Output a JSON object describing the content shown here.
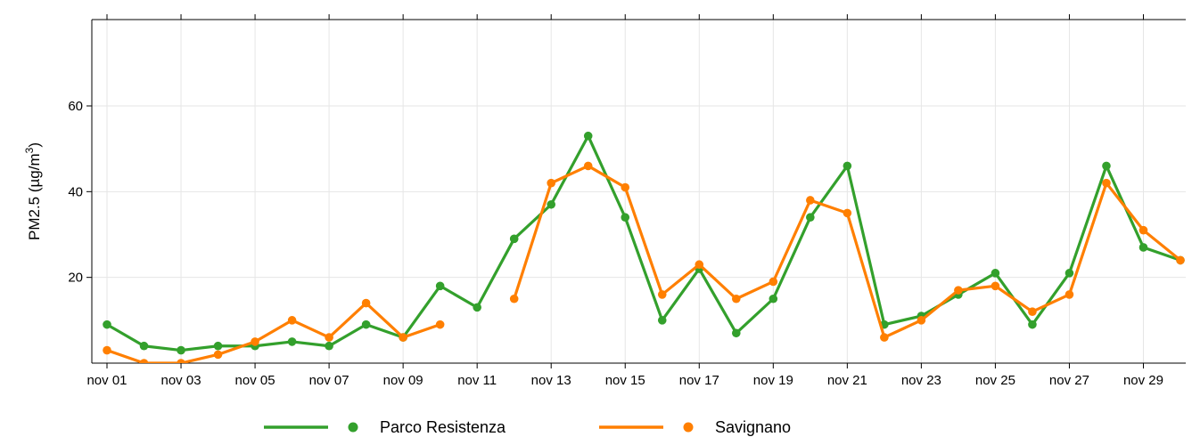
{
  "chart_data": {
    "type": "line",
    "ylabel": "PM2.5 (µg/m³)",
    "ylabel_main": "PM2.5 (µg/m",
    "ylabel_sup": "3",
    "ylabel_end": ")",
    "xlim": [
      1,
      30
    ],
    "ylim": [
      0,
      75
    ],
    "grid": true,
    "legend_position": "bottom",
    "x": [
      1,
      2,
      3,
      4,
      5,
      6,
      7,
      8,
      9,
      10,
      11,
      12,
      13,
      14,
      15,
      16,
      17,
      18,
      19,
      20,
      21,
      22,
      23,
      24,
      25,
      26,
      27,
      28,
      29,
      30
    ],
    "x_ticks": [
      {
        "day": 1,
        "label": "nov 01"
      },
      {
        "day": 3,
        "label": "nov 03"
      },
      {
        "day": 5,
        "label": "nov 05"
      },
      {
        "day": 7,
        "label": "nov 07"
      },
      {
        "day": 9,
        "label": "nov 09"
      },
      {
        "day": 11,
        "label": "nov 11"
      },
      {
        "day": 13,
        "label": "nov 13"
      },
      {
        "day": 15,
        "label": "nov 15"
      },
      {
        "day": 17,
        "label": "nov 17"
      },
      {
        "day": 19,
        "label": "nov 19"
      },
      {
        "day": 21,
        "label": "nov 21"
      },
      {
        "day": 23,
        "label": "nov 23"
      },
      {
        "day": 25,
        "label": "nov 25"
      },
      {
        "day": 27,
        "label": "nov 27"
      },
      {
        "day": 29,
        "label": "nov 29"
      }
    ],
    "y_ticks": [
      20,
      40,
      60
    ],
    "series": [
      {
        "name": "Parco Resistenza",
        "color": "#33a02c",
        "values": [
          9,
          4,
          3,
          4,
          4,
          5,
          4,
          9,
          6,
          18,
          13,
          29,
          37,
          53,
          34,
          10,
          22,
          7,
          15,
          34,
          46,
          9,
          11,
          16,
          21,
          9,
          21,
          46,
          27,
          24
        ]
      },
      {
        "name": "Savignano",
        "color": "#ff7f00",
        "values": [
          3,
          0,
          0,
          2,
          5,
          10,
          6,
          14,
          6,
          9,
          null,
          15,
          42,
          46,
          41,
          16,
          23,
          15,
          19,
          38,
          35,
          6,
          10,
          17,
          18,
          12,
          16,
          42,
          31,
          24
        ]
      }
    ]
  }
}
